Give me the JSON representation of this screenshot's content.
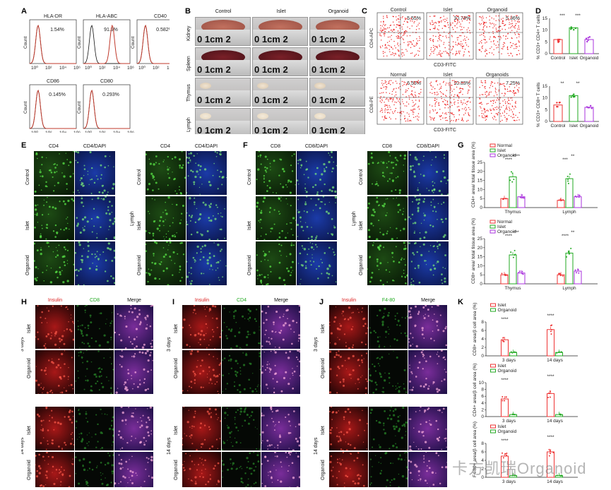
{
  "panels": {
    "A": {
      "label": "A",
      "plots": [
        {
          "title": "HLA-DR",
          "pct": "1.54%"
        },
        {
          "title": "HLA-ABC",
          "pct": "91.9%"
        },
        {
          "title": "CD40",
          "pct": "0.582%"
        },
        {
          "title": "CD86",
          "pct": "0.145%"
        },
        {
          "title": "CD80",
          "pct": "0.293%"
        }
      ],
      "ylabel": "Count"
    },
    "B": {
      "label": "B",
      "cols": [
        "Control",
        "Islet",
        "Organoid"
      ],
      "rows": [
        "Kidney",
        "Spleen",
        "Thymus",
        "Lymph"
      ],
      "ruler": "0    1cm   2"
    },
    "C": {
      "label": "C",
      "top_cols": [
        "Control",
        "Islet",
        "Organoid"
      ],
      "top_pcts": [
        "5.55%",
        "10.74%",
        "5.36%"
      ],
      "top_y": "CD4-APC",
      "top_x": "CD3-FITC",
      "bot_cols": [
        "Normal",
        "Islet",
        "Organoids"
      ],
      "bot_pcts": [
        "6.55%",
        "10.83%",
        "7.25%"
      ],
      "bot_y": "CD8-PE",
      "bot_x": "CD3-FITC"
    },
    "D": {
      "label": "D",
      "charts": [
        {
          "ylabel": "% CD3+ CD4+ T cells",
          "cats": [
            "Control",
            "Islet",
            "Organoid"
          ],
          "sig": [
            "***",
            "***"
          ]
        },
        {
          "ylabel": "% CD3+ CD8+ T cells",
          "cats": [
            "Control",
            "Islet",
            "Organoid"
          ],
          "sig": [
            "**",
            "**"
          ]
        }
      ]
    },
    "E": {
      "label": "E",
      "hdr1": "CD4",
      "hdr2": "CD4/DAPI",
      "rows": [
        "Control",
        "Islet",
        "Organoid"
      ],
      "tissue1": "Thymus",
      "tissue2": "Lymph"
    },
    "F": {
      "label": "F",
      "hdr1": "CD8",
      "hdr2": "CD8/DAPI",
      "rows": [
        "Control",
        "Islet",
        "Organoid"
      ],
      "tissue1": "Thymus",
      "tissue2": "Lymph"
    },
    "G": {
      "label": "G",
      "legend": [
        "Normal",
        "Islet",
        "Organoid"
      ],
      "chart1": {
        "ylabel": "CD4+ area/ total tissue area (%)",
        "groups": [
          "Thymus",
          "Lymph"
        ],
        "sig": [
          "****",
          "****",
          "***",
          "**"
        ]
      },
      "chart2": {
        "ylabel": "CD8+ area/ total tissue area (%)",
        "groups": [
          "Thymus",
          "Lymph"
        ],
        "sig": [
          "****",
          "***",
          "****",
          "**"
        ]
      }
    },
    "H": {
      "label": "H",
      "hdr": [
        "Insulin",
        "CD8",
        "Merge"
      ],
      "rows": [
        "Islet",
        "Organoid",
        "Islet",
        "Organoid"
      ],
      "times": [
        "3 days",
        "14 days"
      ]
    },
    "I": {
      "label": "I",
      "hdr": [
        "Insulin",
        "CD4",
        "Merge"
      ],
      "rows": [
        "Islet",
        "Organoid",
        "Islet",
        "Organoid"
      ],
      "times": [
        "3 days",
        "14 days"
      ]
    },
    "J": {
      "label": "J",
      "hdr": [
        "Insulin",
        "F4-80",
        "Merge"
      ],
      "rows": [
        "Islet",
        "Organoid",
        "Islet",
        "Organoid"
      ],
      "times": [
        "3 days",
        "14 days"
      ]
    },
    "K": {
      "label": "K",
      "legend": [
        "Islet",
        "Organoid"
      ],
      "xcats": [
        "3 days",
        "14 days"
      ],
      "charts": [
        {
          "ylabel": "CD8+ area/β cell area (%)"
        },
        {
          "ylabel": "CD4+ area/β cell area (%)"
        },
        {
          "ylabel": "F4/80+ area/β cell area (%)"
        }
      ],
      "sig": "****"
    }
  },
  "watermark": "卡方凯瑞Organoid",
  "chart_data": [
    {
      "type": "bar",
      "panel": "D-top",
      "categories": [
        "Control",
        "Islet",
        "Organoid"
      ],
      "values": [
        6,
        11,
        6
      ],
      "ylim": [
        0,
        15
      ],
      "ylabel": "% CD3+ CD4+ T cells"
    },
    {
      "type": "bar",
      "panel": "D-bottom",
      "categories": [
        "Control",
        "Islet",
        "Organoid"
      ],
      "values": [
        7,
        11,
        6
      ],
      "ylim": [
        0,
        15
      ],
      "ylabel": "% CD3+ CD8+ T cells"
    },
    {
      "type": "bar",
      "panel": "G-top",
      "categories": [
        "Thymus",
        "Lymph"
      ],
      "series": [
        {
          "name": "Normal",
          "values": [
            5,
            4
          ]
        },
        {
          "name": "Islet",
          "values": [
            17,
            16
          ]
        },
        {
          "name": "Organoid",
          "values": [
            6,
            6
          ]
        }
      ],
      "ylim": [
        0,
        25
      ],
      "ylabel": "CD4+ area/ total tissue area (%)"
    },
    {
      "type": "bar",
      "panel": "G-bottom",
      "categories": [
        "Thymus",
        "Lymph"
      ],
      "series": [
        {
          "name": "Normal",
          "values": [
            5,
            5
          ]
        },
        {
          "name": "Islet",
          "values": [
            16,
            17
          ]
        },
        {
          "name": "Organoid",
          "values": [
            6,
            7
          ]
        }
      ],
      "ylim": [
        0,
        25
      ],
      "ylabel": "CD8+ area/ total tissue area (%)"
    },
    {
      "type": "bar",
      "panel": "K-1",
      "categories": [
        "3 days",
        "14 days"
      ],
      "series": [
        {
          "name": "Islet",
          "values": [
            3.8,
            6.2
          ]
        },
        {
          "name": "Organoid",
          "values": [
            0.8,
            0.8
          ]
        }
      ],
      "ylim": [
        0,
        8
      ],
      "ylabel": "CD8+ area/β cell area (%)"
    },
    {
      "type": "bar",
      "panel": "K-2",
      "categories": [
        "3 days",
        "14 days"
      ],
      "series": [
        {
          "name": "Islet",
          "values": [
            5.2,
            6.8
          ]
        },
        {
          "name": "Organoid",
          "values": [
            0.6,
            0.6
          ]
        }
      ],
      "ylim": [
        0,
        10
      ],
      "ylabel": "CD4+ area/β cell area (%)"
    },
    {
      "type": "bar",
      "panel": "K-3",
      "categories": [
        "3 days",
        "14 days"
      ],
      "series": [
        {
          "name": "Islet",
          "values": [
            5.0,
            6.0
          ]
        },
        {
          "name": "Organoid",
          "values": [
            0.4,
            0.4
          ]
        }
      ],
      "ylim": [
        0,
        8
      ],
      "ylabel": "F4/80+ area/β cell area (%)"
    }
  ]
}
